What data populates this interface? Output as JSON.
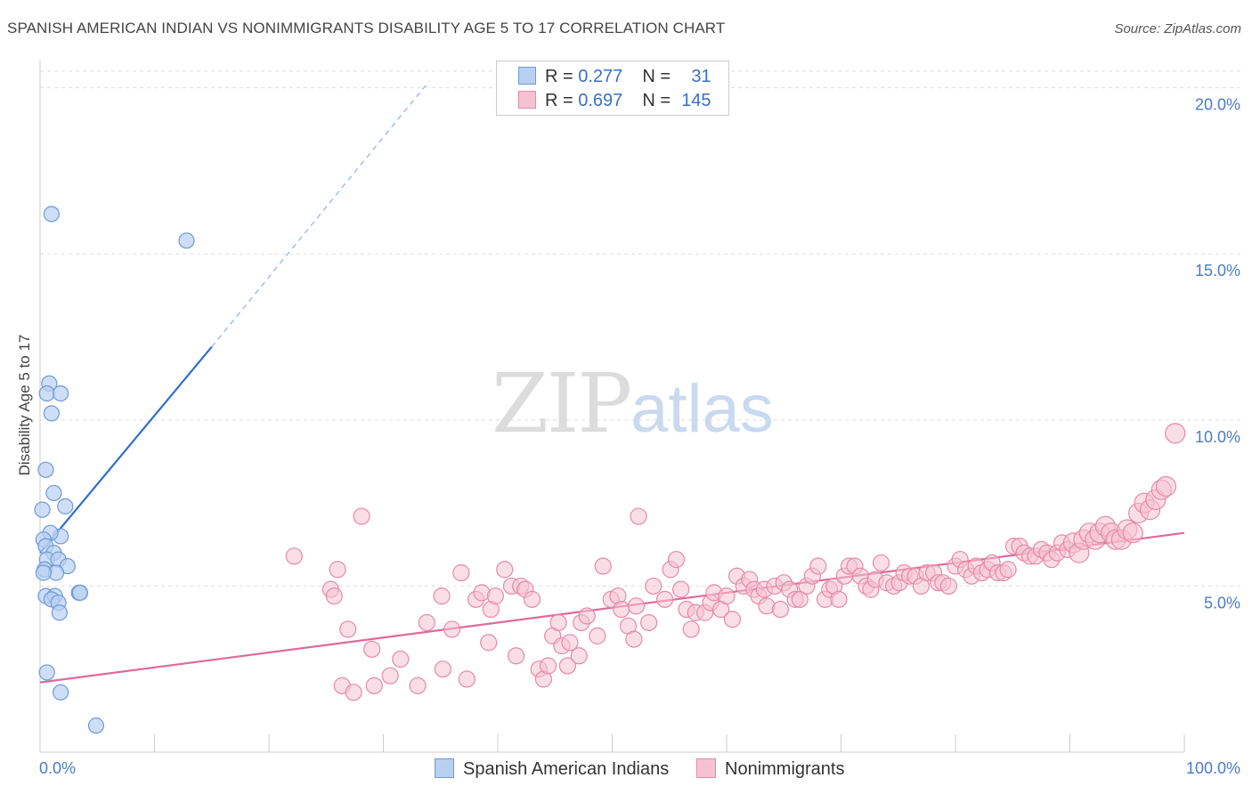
{
  "header": {
    "title": "SPANISH AMERICAN INDIAN VS NONIMMIGRANTS DISABILITY AGE 5 TO 17 CORRELATION CHART",
    "source": "Source: ZipAtlas.com"
  },
  "watermark": {
    "left": "ZIP",
    "right": "atlas"
  },
  "legend": {
    "rows": [
      {
        "r_label": "R =",
        "r_value": "0.277",
        "n_label": "N =",
        "n_value": "31"
      },
      {
        "r_label": "R =",
        "r_value": "0.697",
        "n_label": "N =",
        "n_value": "145"
      }
    ]
  },
  "bottom_legend": {
    "series1": "Spanish American Indians",
    "series2": "Nonimmigrants"
  },
  "colors": {
    "blue_fill": "#b8d0f2",
    "blue_stroke": "#6f9ad6",
    "blue_line": "#2f6fce",
    "pink_fill": "#f6c2d2",
    "pink_stroke": "#e58aa8",
    "pink_line": "#e0689a",
    "grid": "#dddddd",
    "axis_text": "#4a7cc9"
  },
  "chart_data": {
    "type": "scatter",
    "title": "SPANISH AMERICAN INDIAN VS NONIMMIGRANTS DISABILITY AGE 5 TO 17 CORRELATION CHART",
    "xlabel": "",
    "ylabel": "Disability Age 5 to 17",
    "xlim": [
      0,
      100
    ],
    "ylim": [
      0,
      20.5
    ],
    "x_tick_labels": [
      "0.0%",
      "100.0%"
    ],
    "y_ticks": [
      5,
      10,
      15,
      20
    ],
    "y_tick_labels": [
      "5.0%",
      "10.0%",
      "15.0%",
      "20.0%"
    ],
    "series": [
      {
        "name": "Spanish American Indians",
        "R": 0.277,
        "N": 31,
        "trend": {
          "x0": 0,
          "y0": 6.0,
          "x1": 15,
          "y1": 12.2,
          "dash_to_x": 34,
          "dash_to_y": 20.2
        },
        "points": [
          [
            1.0,
            16.2
          ],
          [
            12.8,
            15.4
          ],
          [
            0.8,
            11.1
          ],
          [
            0.6,
            10.8
          ],
          [
            1.8,
            10.8
          ],
          [
            1.0,
            10.2
          ],
          [
            0.5,
            8.5
          ],
          [
            1.2,
            7.8
          ],
          [
            2.2,
            7.4
          ],
          [
            0.2,
            7.3
          ],
          [
            1.8,
            6.5
          ],
          [
            0.9,
            6.6
          ],
          [
            0.3,
            6.4
          ],
          [
            0.5,
            6.2
          ],
          [
            1.2,
            6.0
          ],
          [
            0.6,
            5.8
          ],
          [
            1.6,
            5.8
          ],
          [
            2.4,
            5.6
          ],
          [
            0.4,
            5.5
          ],
          [
            1.4,
            5.4
          ],
          [
            0.3,
            5.4
          ],
          [
            0.5,
            4.7
          ],
          [
            1.3,
            4.7
          ],
          [
            3.4,
            4.8
          ],
          [
            3.5,
            4.8
          ],
          [
            1.0,
            4.6
          ],
          [
            1.6,
            4.5
          ],
          [
            1.7,
            4.2
          ],
          [
            0.6,
            2.4
          ],
          [
            1.8,
            1.8
          ],
          [
            4.9,
            0.8
          ]
        ]
      },
      {
        "name": "Nonimmigrants",
        "R": 0.697,
        "N": 145,
        "trend": {
          "x0": 0,
          "y0": 2.1,
          "x1": 100,
          "y1": 6.6
        },
        "points": [
          [
            22.2,
            5.9
          ],
          [
            25.4,
            4.9
          ],
          [
            25.7,
            4.7
          ],
          [
            26.0,
            5.5
          ],
          [
            26.4,
            2.0
          ],
          [
            26.9,
            3.7
          ],
          [
            27.4,
            1.8
          ],
          [
            28.1,
            7.1
          ],
          [
            29.0,
            3.1
          ],
          [
            29.2,
            2.0
          ],
          [
            30.6,
            2.3
          ],
          [
            31.5,
            2.8
          ],
          [
            33.0,
            2.0
          ],
          [
            33.8,
            3.9
          ],
          [
            35.1,
            4.7
          ],
          [
            35.2,
            2.5
          ],
          [
            36.0,
            3.7
          ],
          [
            36.8,
            5.4
          ],
          [
            37.3,
            2.2
          ],
          [
            38.1,
            4.6
          ],
          [
            38.6,
            4.8
          ],
          [
            39.2,
            3.3
          ],
          [
            39.4,
            4.3
          ],
          [
            39.8,
            4.7
          ],
          [
            40.6,
            5.5
          ],
          [
            41.2,
            5.0
          ],
          [
            41.6,
            2.9
          ],
          [
            42.0,
            5.0
          ],
          [
            42.4,
            4.9
          ],
          [
            43.0,
            4.6
          ],
          [
            43.6,
            2.5
          ],
          [
            44.0,
            2.2
          ],
          [
            44.4,
            2.6
          ],
          [
            44.8,
            3.5
          ],
          [
            45.3,
            3.9
          ],
          [
            45.6,
            3.2
          ],
          [
            46.1,
            2.6
          ],
          [
            46.3,
            3.3
          ],
          [
            47.1,
            2.9
          ],
          [
            47.3,
            3.9
          ],
          [
            47.8,
            4.1
          ],
          [
            48.7,
            3.5
          ],
          [
            49.2,
            5.6
          ],
          [
            49.9,
            4.6
          ],
          [
            50.5,
            4.7
          ],
          [
            50.8,
            4.3
          ],
          [
            51.4,
            3.8
          ],
          [
            51.9,
            3.4
          ],
          [
            52.1,
            4.4
          ],
          [
            52.3,
            7.1
          ],
          [
            53.2,
            3.9
          ],
          [
            53.6,
            5.0
          ],
          [
            54.6,
            4.6
          ],
          [
            55.1,
            5.5
          ],
          [
            55.6,
            5.8
          ],
          [
            56.0,
            4.9
          ],
          [
            56.5,
            4.3
          ],
          [
            56.9,
            3.7
          ],
          [
            57.3,
            4.2
          ],
          [
            58.1,
            4.2
          ],
          [
            58.6,
            4.5
          ],
          [
            58.9,
            4.8
          ],
          [
            59.5,
            4.3
          ],
          [
            60.0,
            4.7
          ],
          [
            60.5,
            4.0
          ],
          [
            60.9,
            5.3
          ],
          [
            61.5,
            5.0
          ],
          [
            62.0,
            5.2
          ],
          [
            62.4,
            4.9
          ],
          [
            62.8,
            4.7
          ],
          [
            63.3,
            4.9
          ],
          [
            63.5,
            4.4
          ],
          [
            64.2,
            5.0
          ],
          [
            64.7,
            4.3
          ],
          [
            65.0,
            5.1
          ],
          [
            65.5,
            4.9
          ],
          [
            66.0,
            4.6
          ],
          [
            66.4,
            4.6
          ],
          [
            67.0,
            5.0
          ],
          [
            67.5,
            5.3
          ],
          [
            68.0,
            5.6
          ],
          [
            68.6,
            4.6
          ],
          [
            69.0,
            4.9
          ],
          [
            69.4,
            5.0
          ],
          [
            69.8,
            4.6
          ],
          [
            70.3,
            5.3
          ],
          [
            70.7,
            5.6
          ],
          [
            71.2,
            5.6
          ],
          [
            71.7,
            5.3
          ],
          [
            72.2,
            5.0
          ],
          [
            72.6,
            4.9
          ],
          [
            73.0,
            5.2
          ],
          [
            73.5,
            5.7
          ],
          [
            74.0,
            5.1
          ],
          [
            74.6,
            5.0
          ],
          [
            75.1,
            5.1
          ],
          [
            75.5,
            5.4
          ],
          [
            76.0,
            5.3
          ],
          [
            76.5,
            5.3
          ],
          [
            77.0,
            5.0
          ],
          [
            77.5,
            5.4
          ],
          [
            78.1,
            5.4
          ],
          [
            78.5,
            5.1
          ],
          [
            78.9,
            5.1
          ],
          [
            79.4,
            5.0
          ],
          [
            80.0,
            5.6
          ],
          [
            80.4,
            5.8
          ],
          [
            80.9,
            5.5
          ],
          [
            81.4,
            5.3
          ],
          [
            81.8,
            5.6
          ],
          [
            82.3,
            5.4
          ],
          [
            82.8,
            5.5
          ],
          [
            83.2,
            5.7
          ],
          [
            83.7,
            5.4
          ],
          [
            84.2,
            5.4
          ],
          [
            84.6,
            5.5
          ],
          [
            85.1,
            6.2
          ],
          [
            85.6,
            6.2
          ],
          [
            86.0,
            6.0
          ],
          [
            86.5,
            5.9
          ],
          [
            87.0,
            5.9
          ],
          [
            87.5,
            6.1
          ],
          [
            88.0,
            6.0
          ],
          [
            88.4,
            5.8
          ],
          [
            88.9,
            6.0
          ],
          [
            89.3,
            6.3
          ],
          [
            89.8,
            6.1
          ],
          [
            90.3,
            6.3
          ],
          [
            90.8,
            6.0
          ],
          [
            91.2,
            6.4
          ],
          [
            91.7,
            6.6
          ],
          [
            92.2,
            6.4
          ],
          [
            92.6,
            6.6
          ],
          [
            93.1,
            6.8
          ],
          [
            93.6,
            6.6
          ],
          [
            94.0,
            6.4
          ],
          [
            94.5,
            6.4
          ],
          [
            95.0,
            6.7
          ],
          [
            95.5,
            6.6
          ],
          [
            96.0,
            7.2
          ],
          [
            96.5,
            7.5
          ],
          [
            97.0,
            7.3
          ],
          [
            97.5,
            7.6
          ],
          [
            98.0,
            7.9
          ],
          [
            98.4,
            8.0
          ],
          [
            99.2,
            9.6
          ]
        ]
      }
    ],
    "extra_outliers_note": ""
  }
}
